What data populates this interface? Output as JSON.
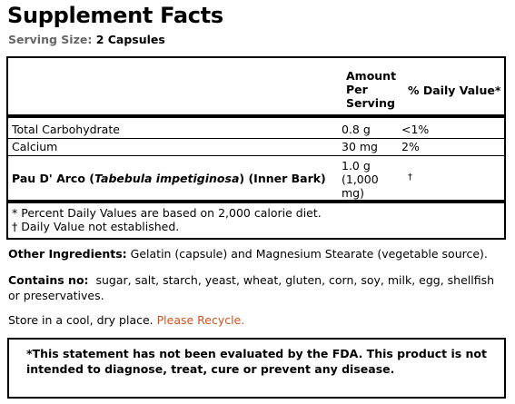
{
  "title": "Supplement Facts",
  "serving": {
    "label": "Serving Size:",
    "value": "2 Capsules"
  },
  "table": {
    "header_amount": "Amount Per Serving",
    "header_dv": "% Daily Value*",
    "rows": [
      {
        "name": "Total Carbohydrate",
        "amount": "0.8 g",
        "dv": "<1%"
      },
      {
        "name": "Calcium",
        "amount": "30 mg",
        "dv": "2%"
      }
    ],
    "pau": {
      "name_pre": "Pau D' Arco (",
      "name_italic": "Tabebula impetiginosa",
      "name_post": ") (Inner Bark)",
      "amount_line1": "1.0 g",
      "amount_line2": "(1,000",
      "amount_line3": "mg)",
      "dv": "†"
    },
    "footnote1": "* Percent Daily Values are based on 2,000 calorie diet.",
    "footnote2": "† Daily Value not established."
  },
  "other_ingredients": {
    "label": "Other Ingredients:",
    "text": "Gelatin (capsule) and Magnesium Stearate (vegetable source)."
  },
  "contains_no": {
    "label": "Contains no:",
    "text": "sugar, salt, starch, yeast, wheat, gluten, corn, soy, milk, egg, shellfish or preservatives."
  },
  "storage": {
    "text": "Store in a cool, dry place.",
    "recycle": "Please Recycle."
  },
  "fda": "*This statement has not been evaluated by the FDA. This product is not intended to diagnose, treat, cure or prevent any disease."
}
